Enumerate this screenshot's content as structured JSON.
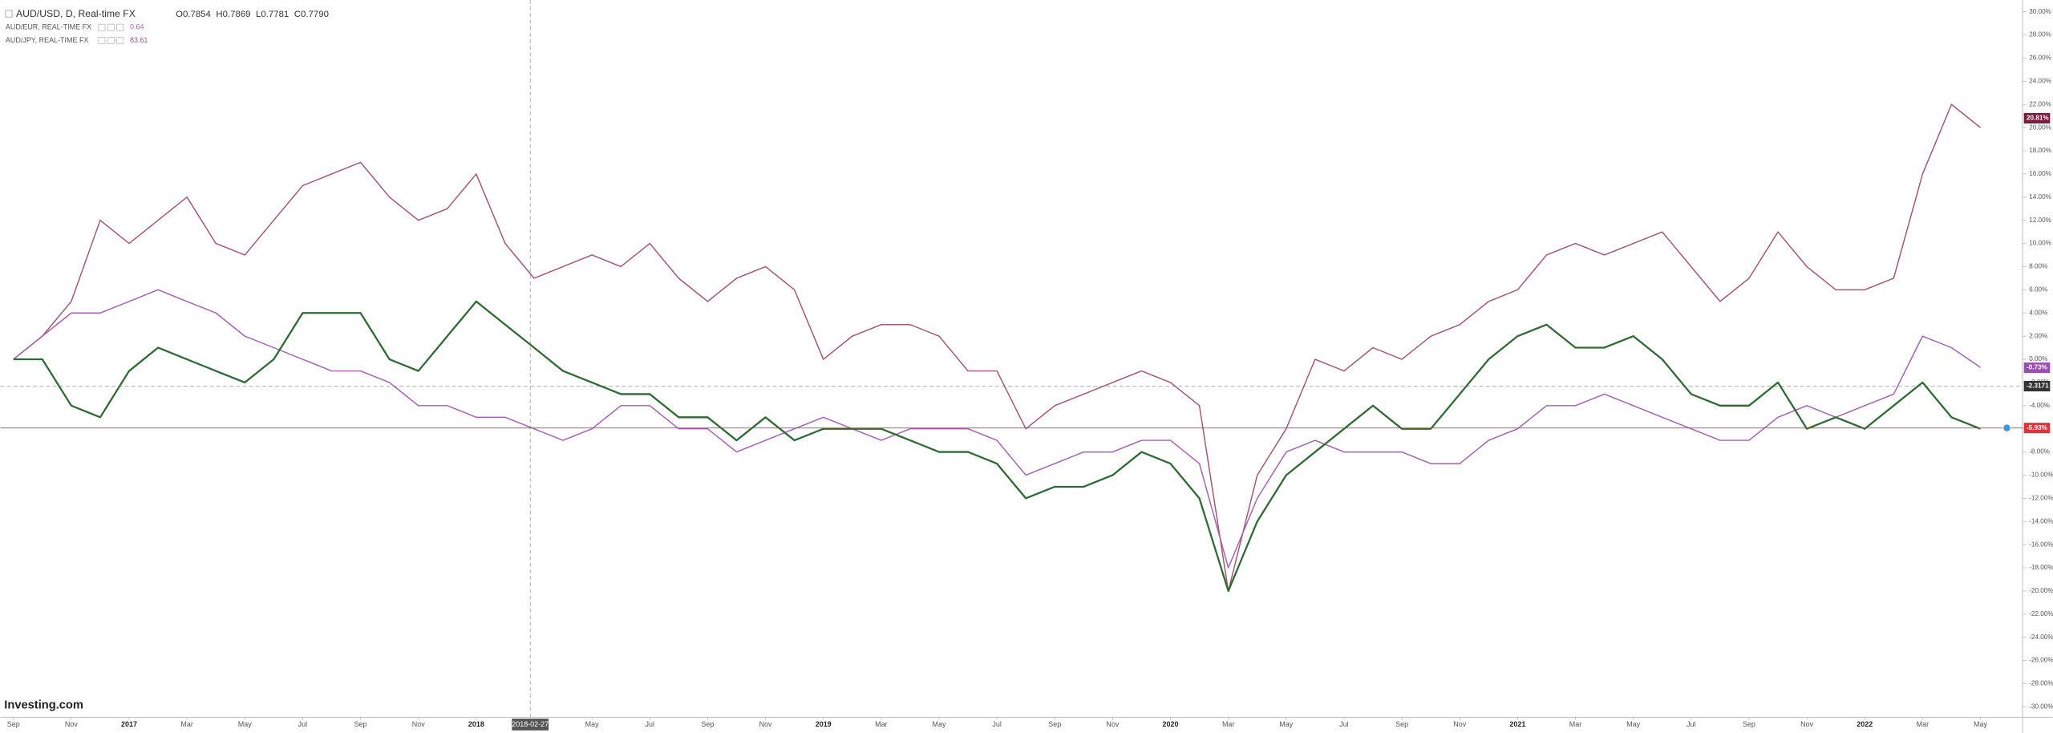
{
  "chart_data": {
    "type": "line",
    "title": "AUD/USD, D, Real-time FX",
    "ohlc": [
      "O0.7854",
      "H0.7869",
      "L0.7781",
      "C0.7790"
    ],
    "logo": "Investing.com",
    "categories": [
      "Sep",
      null,
      "Nov",
      null,
      "2017",
      null,
      "Mar",
      null,
      "May",
      null,
      "Jul",
      null,
      "Sep",
      null,
      "Nov",
      null,
      "2018",
      null,
      null,
      null,
      "May",
      null,
      "Jul",
      null,
      "Sep",
      null,
      "Nov",
      null,
      "2019",
      null,
      "Mar",
      null,
      "May",
      null,
      "Jul",
      null,
      "Sep",
      null,
      "Nov",
      null,
      "2020",
      null,
      "Mar",
      null,
      "May",
      null,
      "Jul",
      null,
      "Sep",
      null,
      "Nov",
      null,
      "2021",
      null,
      "Mar",
      null,
      "May",
      null,
      "Jul",
      null,
      "Sep",
      null,
      "Nov",
      null,
      "2022",
      null,
      "Mar",
      null,
      "May"
    ],
    "series": [
      {
        "name": "AUD/JPY, REAL-TIME FX",
        "legend_value": "83.61",
        "color": "#a3566f",
        "values": [
          0,
          2,
          5,
          12,
          10,
          12,
          14,
          10,
          9,
          12,
          15,
          16,
          17,
          14,
          12,
          13,
          16,
          10,
          7,
          8,
          9,
          8,
          10,
          7,
          5,
          7,
          8,
          6,
          0,
          2,
          3,
          3,
          2,
          -1,
          -1,
          -6,
          -4,
          -3,
          -2,
          -1,
          -2,
          -4,
          -20,
          -10,
          -6,
          0,
          -1,
          1,
          0,
          2,
          3,
          5,
          6,
          9,
          10,
          9,
          10,
          11,
          8,
          5,
          7,
          11,
          8,
          6,
          6,
          7,
          16,
          22,
          20
        ]
      },
      {
        "name": "AUD/EUR, REAL-TIME FX",
        "legend_value": "0.64",
        "color": "#a45fb3",
        "values": [
          0,
          2,
          4,
          4,
          5,
          6,
          5,
          4,
          2,
          1,
          0,
          -1,
          -1,
          -2,
          -4,
          -4,
          -5,
          -5,
          -6,
          -7,
          -6,
          -4,
          -4,
          -6,
          -6,
          -8,
          -7,
          -6,
          -5,
          -6,
          -7,
          -6,
          -6,
          -6,
          -7,
          -10,
          -9,
          -8,
          -8,
          -7,
          -7,
          -9,
          -18,
          -12,
          -8,
          -7,
          -8,
          -8,
          -8,
          -9,
          -9,
          -7,
          -6,
          -4,
          -4,
          -3,
          -4,
          -5,
          -6,
          -7,
          -7,
          -5,
          -4,
          -5,
          -4,
          -3,
          2,
          1,
          -0.7
        ]
      },
      {
        "name": "AUD/USD",
        "color": "#2d6b32",
        "values": [
          0,
          0,
          -4,
          -5,
          -1,
          1,
          0,
          -1,
          -2,
          0,
          4,
          4,
          4,
          0,
          -1,
          2,
          5,
          3,
          1,
          -1,
          -2,
          -3,
          -3,
          -5,
          -5,
          -7,
          -5,
          -7,
          -6,
          -6,
          -6,
          -7,
          -8,
          -8,
          -9,
          -12,
          -11,
          -11,
          -10,
          -8,
          -9,
          -12,
          -20,
          -14,
          -10,
          -8,
          -6,
          -4,
          -6,
          -6,
          -3,
          0,
          2,
          3,
          1,
          1,
          2,
          0,
          -3,
          -4,
          -4,
          -2,
          -6,
          -5,
          -6,
          -4,
          -2,
          -5,
          -6
        ]
      }
    ],
    "price_tags": [
      {
        "label": "20.81%",
        "value": 20.81,
        "color": "#7d1b3e"
      },
      {
        "label": "-0.73%",
        "value": -0.73,
        "color": "#9a4fb0"
      },
      {
        "label": "-5.93%",
        "value": -5.93,
        "color": "#e0323c"
      }
    ],
    "crosshair": {
      "x_label": "2018-02-27",
      "y_label": "-2.3171",
      "y_value": -2.3171
    },
    "ylim": [
      -31,
      31
    ],
    "yticks": [
      {
        "value": 30,
        "label": "30.00%"
      },
      {
        "value": 28,
        "label": "28.00%"
      },
      {
        "value": 26,
        "label": "26.00%"
      },
      {
        "value": 24,
        "label": "24.00%"
      },
      {
        "value": 22,
        "label": "22.00%"
      },
      {
        "value": 20,
        "label": "20.00%"
      },
      {
        "value": 18,
        "label": "18.00%"
      },
      {
        "value": 16,
        "label": "16.00%"
      },
      {
        "value": 14,
        "label": "14.00%"
      },
      {
        "value": 12,
        "label": "12.00%"
      },
      {
        "value": 10,
        "label": "10.00%"
      },
      {
        "value": 8,
        "label": "8.00%"
      },
      {
        "value": 6,
        "label": "6.00%"
      },
      {
        "value": 4,
        "label": "4.00%"
      },
      {
        "value": 2,
        "label": "2.00%"
      },
      {
        "value": 0,
        "label": "0.00%"
      },
      {
        "value": -2,
        "label": "-2.00%"
      },
      {
        "value": -4,
        "label": "-4.00%"
      },
      {
        "value": -6,
        "label": "-6.00%"
      },
      {
        "value": -8,
        "label": "-8.00%"
      },
      {
        "value": -10,
        "label": "-10.00%"
      },
      {
        "value": -12,
        "label": "-12.00%"
      },
      {
        "value": -14,
        "label": "-14.00%"
      },
      {
        "value": -16,
        "label": "-16.00%"
      },
      {
        "value": -18,
        "label": "-18.00%"
      },
      {
        "value": -20,
        "label": "-20.00%"
      },
      {
        "value": -22,
        "label": "-22.00%"
      },
      {
        "value": -24,
        "label": "-24.00%"
      },
      {
        "value": -26,
        "label": "-26.00%"
      },
      {
        "value": -28,
        "label": "-28.00%"
      },
      {
        "value": -30,
        "label": "-30.00%"
      }
    ],
    "grid": false
  }
}
